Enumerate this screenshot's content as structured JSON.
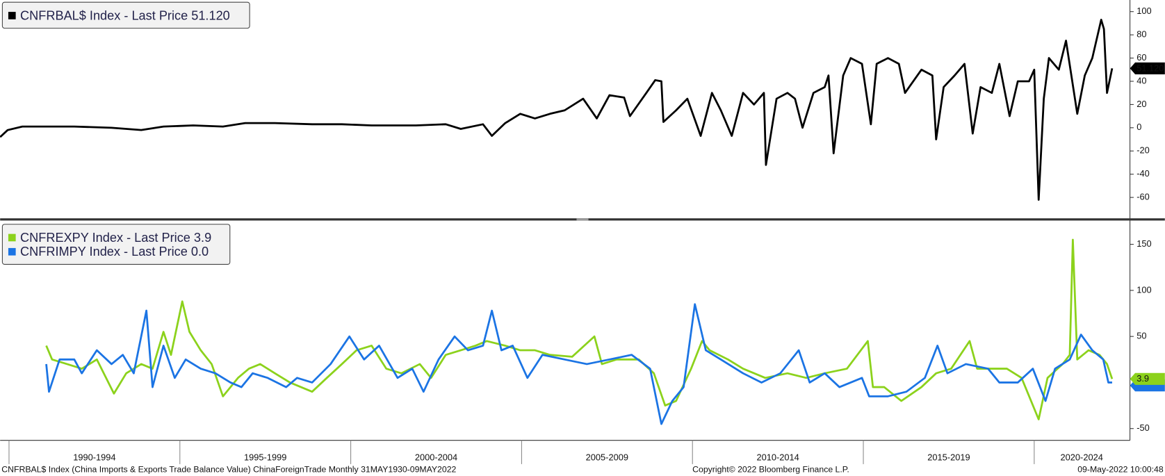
{
  "chart_data": [
    {
      "type": "line",
      "xlim": [
        1989.74,
        2022.78
      ],
      "ylim": [
        -78,
        110
      ],
      "yticks": [
        100,
        80,
        60,
        40,
        20,
        0,
        -20,
        -40,
        -60
      ],
      "series": [
        {
          "name": "CNFRBAL$ Index - Last Price 51.120",
          "color": "#000000",
          "last_label": "51.120",
          "x": [
            1989.74,
            1989.96,
            1990.39,
            1991.91,
            1993.0,
            1993.87,
            1994.52,
            1995.39,
            1996.26,
            1996.91,
            1997.78,
            1998.87,
            1999.74,
            2000.61,
            2001.91,
            2002.78,
            2003.22,
            2003.87,
            2004.13,
            2004.52,
            2004.96,
            2005.39,
            2005.83,
            2006.26,
            2006.8,
            2007.2,
            2007.57,
            2008.0,
            2008.17,
            2008.65,
            2008.91,
            2009.09,
            2009.15,
            2009.52,
            2009.85,
            2010.24,
            2010.57,
            2010.83,
            2011.15,
            2011.48,
            2011.8,
            2012.09,
            2012.15,
            2012.46,
            2012.78,
            2013.0,
            2013.22,
            2013.54,
            2013.87,
            2013.98,
            2014.13,
            2014.41,
            2014.63,
            2014.96,
            2015.22,
            2015.39,
            2015.72,
            2016.04,
            2016.22,
            2016.7,
            2017.02,
            2017.13,
            2017.35,
            2017.67,
            2017.96,
            2018.2,
            2018.43,
            2018.76,
            2018.98,
            2019.28,
            2019.52,
            2019.85,
            2020.0,
            2020.13,
            2020.28,
            2020.43,
            2020.72,
            2020.93,
            2021.26,
            2021.48,
            2021.7,
            2021.96,
            2022.04,
            2022.13,
            2022.28
          ],
          "values": [
            -8,
            -2,
            1,
            1,
            0,
            -2,
            1,
            2,
            1,
            4,
            4,
            3,
            3,
            2,
            2,
            3,
            -1,
            3,
            -7,
            4,
            12,
            8,
            12,
            15,
            25,
            8,
            28,
            26,
            10,
            30,
            41,
            40,
            5,
            15,
            25,
            -7,
            30,
            15,
            -7,
            30,
            20,
            30,
            -32,
            25,
            30,
            25,
            0,
            30,
            35,
            45,
            -22,
            45,
            60,
            55,
            3,
            55,
            60,
            55,
            30,
            50,
            45,
            -10,
            35,
            45,
            55,
            -5,
            35,
            30,
            55,
            10,
            40,
            40,
            50,
            -62,
            25,
            60,
            50,
            75,
            12,
            45,
            60,
            93,
            85,
            30,
            51.12
          ]
        }
      ]
    },
    {
      "type": "line",
      "xlim": [
        1989.74,
        2022.78
      ],
      "ylim": [
        -62,
        175
      ],
      "yticks": [
        150,
        100,
        50,
        -50
      ],
      "series": [
        {
          "name": "CNFREXPY Index - Last Price 3.9",
          "color": "#8cd21c",
          "last_label": "3.9",
          "x": [
            1991.09,
            1991.26,
            1991.7,
            1992.13,
            1992.57,
            1993.07,
            1993.43,
            1993.87,
            1994.2,
            1994.52,
            1994.74,
            1995.07,
            1995.28,
            1995.61,
            1995.93,
            1996.26,
            1996.7,
            1997.02,
            1997.35,
            1997.78,
            1998.22,
            1998.87,
            1999.3,
            1999.74,
            2000.17,
            2000.61,
            2001.04,
            2001.48,
            2002.02,
            2002.35,
            2002.78,
            2003.22,
            2003.65,
            2003.98,
            2004.52,
            2004.96,
            2005.39,
            2005.83,
            2006.48,
            2007.13,
            2007.35,
            2007.78,
            2008.43,
            2008.87,
            2009.2,
            2009.52,
            2009.96,
            2010.28,
            2010.5,
            2011.04,
            2011.48,
            2012.13,
            2012.78,
            2013.33,
            2013.87,
            2014.52,
            2015.13,
            2015.28,
            2015.61,
            2016.11,
            2016.7,
            2017.13,
            2017.57,
            2018.11,
            2018.33,
            2018.87,
            2019.2,
            2019.63,
            2020.13,
            2020.39,
            2020.83,
            2021.04,
            2021.13,
            2021.26,
            2021.59,
            2021.91,
            2022.13,
            2022.28
          ],
          "values": [
            40,
            25,
            20,
            15,
            25,
            -12,
            10,
            20,
            15,
            55,
            30,
            88,
            55,
            35,
            20,
            -15,
            5,
            15,
            20,
            10,
            0,
            -10,
            5,
            20,
            35,
            40,
            15,
            10,
            20,
            5,
            30,
            35,
            40,
            45,
            40,
            35,
            35,
            30,
            28,
            50,
            20,
            25,
            25,
            10,
            -25,
            -20,
            15,
            45,
            35,
            25,
            15,
            5,
            10,
            5,
            10,
            15,
            45,
            -5,
            -5,
            -20,
            -5,
            10,
            15,
            45,
            15,
            15,
            15,
            5,
            -40,
            5,
            20,
            30,
            155,
            25,
            35,
            30,
            20,
            3.9
          ]
        },
        {
          "name": "CNFRIMPY Index - Last Price 0.0",
          "color": "#1b74e4",
          "x": [
            1991.09,
            1991.17,
            1991.48,
            1991.91,
            1992.13,
            1992.57,
            1993.0,
            1993.33,
            1993.65,
            1994.02,
            1994.2,
            1994.52,
            1994.85,
            1995.17,
            1995.61,
            1996.04,
            1996.48,
            1996.8,
            1997.13,
            1997.57,
            1998.11,
            1998.43,
            1998.87,
            1999.41,
            1999.96,
            2000.39,
            2000.83,
            2001.37,
            2001.8,
            2002.13,
            2002.57,
            2003.04,
            2003.43,
            2003.87,
            2004.13,
            2004.41,
            2004.74,
            2005.17,
            2005.61,
            2006.26,
            2006.91,
            2007.57,
            2008.22,
            2008.76,
            2009.09,
            2009.41,
            2009.74,
            2010.07,
            2010.39,
            2010.83,
            2011.48,
            2012.02,
            2012.57,
            2013.11,
            2013.43,
            2013.87,
            2014.3,
            2014.96,
            2015.17,
            2015.72,
            2016.26,
            2016.8,
            2017.17,
            2017.46,
            2018.0,
            2018.65,
            2018.98,
            2019.52,
            2019.96,
            2020.33,
            2020.61,
            2021.04,
            2021.37,
            2021.7,
            2022.02,
            2022.17,
            2022.28
          ],
          "values": [
            20,
            -10,
            25,
            25,
            10,
            35,
            20,
            30,
            10,
            78,
            -5,
            40,
            5,
            25,
            15,
            10,
            0,
            -5,
            10,
            5,
            -5,
            5,
            0,
            20,
            50,
            25,
            40,
            5,
            15,
            -10,
            25,
            50,
            35,
            40,
            78,
            35,
            40,
            5,
            30,
            25,
            20,
            25,
            30,
            15,
            -45,
            -20,
            -5,
            85,
            35,
            25,
            10,
            0,
            10,
            35,
            0,
            10,
            -5,
            5,
            -15,
            -15,
            -10,
            5,
            40,
            10,
            20,
            15,
            0,
            0,
            15,
            -20,
            15,
            25,
            52,
            35,
            25,
            0,
            0.0
          ]
        }
      ]
    }
  ],
  "x_axis": {
    "periods": [
      {
        "start": 1990,
        "end": 1995,
        "label": "1990-1994"
      },
      {
        "start": 1995,
        "end": 2000,
        "label": "1995-1999"
      },
      {
        "start": 2000,
        "end": 2005,
        "label": "2000-2004"
      },
      {
        "start": 2005,
        "end": 2010,
        "label": "2005-2009"
      },
      {
        "start": 2010,
        "end": 2015,
        "label": "2010-2014"
      },
      {
        "start": 2015,
        "end": 2020,
        "label": "2015-2019"
      },
      {
        "start": 2020,
        "end": 2025,
        "label": "2020-2024"
      }
    ]
  },
  "footer": {
    "left": "CNFRBAL$ Index (China Imports & Exports Trade Balance Value) ChinaForeignTrade  Monthly 31MAY1930-09MAY2022",
    "center": "Copyright© 2022 Bloomberg Finance L.P.",
    "right": "09-May-2022 10:00:48"
  }
}
